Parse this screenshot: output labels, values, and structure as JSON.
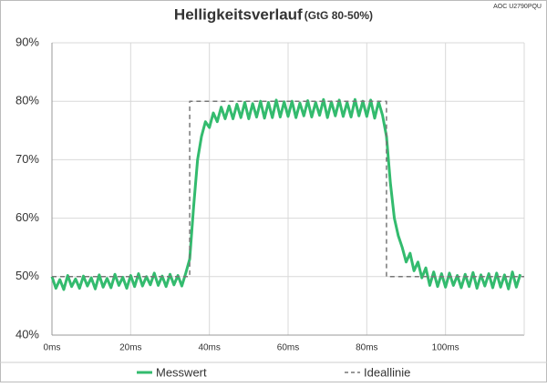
{
  "chart_data": {
    "type": "line",
    "title": "Helligkeitsverlauf",
    "subtitle": "(GtG 80-50%)",
    "watermark": "AOC U2790PQU",
    "xlim": [
      0,
      120
    ],
    "ylim": [
      40,
      90
    ],
    "xticks": [
      {
        "value": 0,
        "label": "0ms"
      },
      {
        "value": 20,
        "label": "20ms"
      },
      {
        "value": 40,
        "label": "40ms"
      },
      {
        "value": 60,
        "label": "60ms"
      },
      {
        "value": 80,
        "label": "80ms"
      },
      {
        "value": 100,
        "label": "100ms"
      }
    ],
    "yticks": [
      {
        "value": 40,
        "label": "40%"
      },
      {
        "value": 50,
        "label": "50%"
      },
      {
        "value": 60,
        "label": "60%"
      },
      {
        "value": 70,
        "label": "70%"
      },
      {
        "value": 80,
        "label": "80%"
      },
      {
        "value": 90,
        "label": "90%"
      }
    ],
    "grid": true,
    "legend": "bottom",
    "series": [
      {
        "name": "Messwert",
        "color": "#33bb6e",
        "dashed": false,
        "x": [
          0,
          1,
          2,
          3,
          4,
          5,
          6,
          7,
          8,
          9,
          10,
          11,
          12,
          13,
          14,
          15,
          16,
          17,
          18,
          19,
          20,
          21,
          22,
          23,
          24,
          25,
          26,
          27,
          28,
          29,
          30,
          31,
          32,
          33,
          34,
          35,
          36,
          37,
          38,
          39,
          40,
          41,
          42,
          43,
          44,
          45,
          46,
          47,
          48,
          49,
          50,
          51,
          52,
          53,
          54,
          55,
          56,
          57,
          58,
          59,
          60,
          61,
          62,
          63,
          64,
          65,
          66,
          67,
          68,
          69,
          70,
          71,
          72,
          73,
          74,
          75,
          76,
          77,
          78,
          79,
          80,
          81,
          82,
          83,
          84,
          85,
          86,
          87,
          88,
          89,
          90,
          91,
          92,
          93,
          94,
          95,
          96,
          97,
          98,
          99,
          100,
          101,
          102,
          103,
          104,
          105,
          106,
          107,
          108,
          109,
          110,
          111,
          112,
          113,
          114,
          115,
          116,
          117,
          118,
          119
        ],
        "values": [
          50,
          48,
          49.5,
          47.8,
          50.2,
          48.3,
          49.6,
          48,
          50.1,
          48.4,
          49.8,
          47.9,
          50.3,
          48.2,
          49.7,
          48.1,
          50.4,
          48.5,
          49.9,
          48,
          50.2,
          48.3,
          50.5,
          48.4,
          50,
          48.6,
          50.6,
          48.5,
          50.1,
          48.3,
          50.4,
          48.6,
          50.2,
          48.4,
          50.6,
          53,
          62,
          70,
          74,
          76.5,
          75.5,
          78,
          76.5,
          79,
          77,
          79.2,
          77,
          79.5,
          77.2,
          79.8,
          77,
          79.6,
          77.3,
          80,
          77.1,
          79.8,
          77.2,
          80.2,
          77.3,
          79.9,
          77.4,
          80,
          77.2,
          79.7,
          77.5,
          80.1,
          77.3,
          79.8,
          77.6,
          80.3,
          77.2,
          79.9,
          77.5,
          80.2,
          77.4,
          79.8,
          77.3,
          80.3,
          77.5,
          80,
          77.4,
          80.2,
          77.1,
          79.9,
          77.6,
          74,
          66,
          60,
          57,
          55,
          52.5,
          54,
          51,
          52.5,
          49.8,
          51.5,
          48.5,
          50.8,
          48.3,
          50.5,
          48.2,
          50.6,
          48.5,
          50.2,
          48.1,
          50.4,
          48.3,
          50.7,
          48,
          50.3,
          48.4,
          50.5,
          48.1,
          50.6,
          48.2,
          50.3,
          47.9,
          50.8,
          48.2,
          50.4
        ]
      },
      {
        "name": "Ideallinie",
        "color": "#777777",
        "dashed": true,
        "x": [
          0,
          35,
          35,
          85,
          85,
          120
        ],
        "values": [
          50,
          50,
          80,
          80,
          50,
          50
        ]
      }
    ]
  }
}
